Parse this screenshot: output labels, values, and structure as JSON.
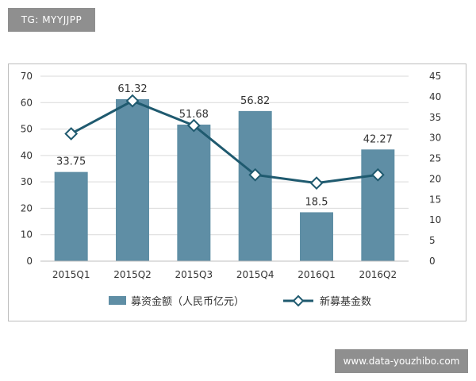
{
  "watermark_top": "TG: MYYJJPP",
  "watermark_bottom": "www.data-youzhibo.com",
  "colors": {
    "bar": "#5f8ea5",
    "line": "#1f5a6f",
    "grid": "#d9d9d9",
    "axis": "#7f7f7f",
    "text": "#333333"
  },
  "chart_data": {
    "type": "bar",
    "categories": [
      "2015Q1",
      "2015Q2",
      "2015Q3",
      "2015Q4",
      "2016Q1",
      "2016Q2"
    ],
    "series": [
      {
        "name": "募资金额（人民币亿元）",
        "type": "bar",
        "axis": "left",
        "values": [
          33.75,
          61.32,
          51.68,
          56.82,
          18.5,
          42.27
        ],
        "data_labels": [
          "33.75",
          "61.32",
          "51.68",
          "56.82",
          "18.5",
          "42.27"
        ]
      },
      {
        "name": "新募基金数",
        "type": "line",
        "axis": "right",
        "values": [
          31,
          39,
          33,
          21,
          19,
          21
        ]
      }
    ],
    "y_left": {
      "lim": [
        0,
        70
      ],
      "ticks": [
        "0",
        "10",
        "20",
        "30",
        "40",
        "50",
        "60",
        "70"
      ]
    },
    "y_right": {
      "lim": [
        0,
        45
      ],
      "ticks": [
        "0",
        "5",
        "10",
        "15",
        "20",
        "25",
        "30",
        "35",
        "40",
        "45"
      ]
    },
    "grid": true,
    "legend_position": "bottom"
  }
}
